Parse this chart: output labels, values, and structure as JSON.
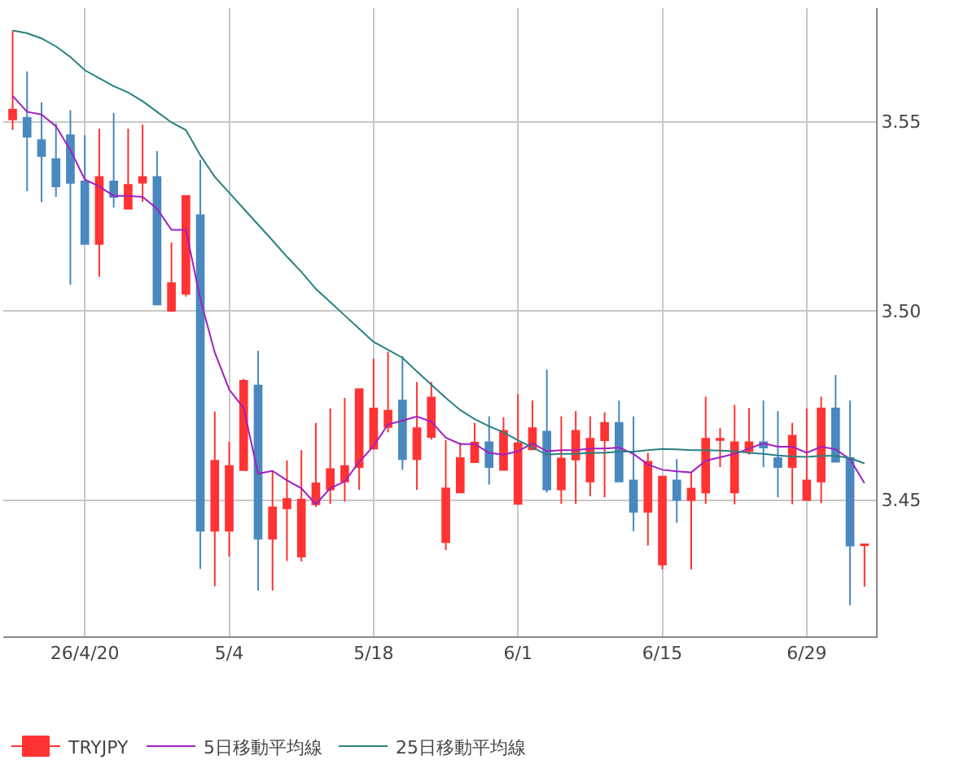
{
  "chart_data": {
    "type": "candlestick",
    "categories": [
      null,
      null,
      null,
      null,
      null,
      "26/4/20",
      null,
      null,
      null,
      null,
      null,
      null,
      null,
      null,
      null,
      "5/4",
      null,
      null,
      null,
      null,
      null,
      null,
      null,
      null,
      null,
      "5/18",
      null,
      null,
      null,
      null,
      null,
      null,
      null,
      null,
      null,
      "6/1",
      null,
      null,
      null,
      null,
      null,
      null,
      null,
      null,
      null,
      "6/15",
      null,
      null,
      null,
      null,
      null,
      null,
      null,
      null,
      null,
      "6/29",
      null,
      null,
      null,
      null
    ],
    "series": [
      {
        "name": "TRYJPY",
        "colors": [
          "#ff3333",
          "#4a88c0",
          "#4a88c0",
          "#4a88c0",
          "#4a88c0",
          "#4a88c0",
          "#ff3333",
          "#4a88c0",
          "#ff3333",
          "#ff3333",
          "#4a88c0",
          "#ff3333",
          "#ff3333",
          "#4a88c0",
          "#ff3333",
          "#ff3333",
          "#ff3333",
          "#4a88c0",
          "#ff3333",
          "#ff3333",
          "#ff3333",
          "#ff3333",
          "#ff3333",
          "#ff3333",
          "#ff3333",
          "#ff3333",
          "#ff3333",
          "#4a88c0",
          "#ff3333",
          "#ff3333",
          "#ff3333",
          "#ff3333",
          "#ff3333",
          "#4a88c0",
          "#ff3333",
          "#ff3333",
          "#ff3333",
          "#4a88c0",
          "#ff3333",
          "#ff3333",
          "#ff3333",
          "#ff3333",
          "#4a88c0",
          "#4a88c0",
          "#ff3333",
          "#ff3333",
          "#4a88c0",
          "#ff3333",
          "#ff3333",
          "#ff3333",
          "#ff3333",
          "#ff3333",
          "#4a88c0",
          "#4a88c0",
          "#ff3333",
          "#ff3333",
          "#ff3333",
          "#4a88c0",
          "#4a88c0",
          "#ff3333"
        ],
        "ohlc": [
          [
            3.5506,
            3.5741,
            3.5478,
            3.5532
          ],
          [
            3.551,
            3.5633,
            3.5316,
            3.546
          ],
          [
            3.5451,
            3.5551,
            3.5287,
            3.5409
          ],
          [
            3.5401,
            3.5495,
            3.5301,
            3.5329
          ],
          [
            3.5464,
            3.553,
            3.5069,
            3.5338
          ],
          [
            3.5342,
            3.5464,
            3.5177,
            3.5177
          ],
          [
            3.5177,
            3.5481,
            3.509,
            3.5354
          ],
          [
            3.5342,
            3.5523,
            3.5273,
            3.5301
          ],
          [
            3.527,
            3.5481,
            3.527,
            3.5333
          ],
          [
            3.5339,
            3.5492,
            3.5288,
            3.5354
          ],
          [
            3.5354,
            3.5422,
            3.5017,
            3.5017
          ],
          [
            3.5,
            3.5181,
            3.5,
            3.5073
          ],
          [
            3.5045,
            3.5304,
            3.5038,
            3.5304
          ],
          [
            3.5253,
            3.5399,
            3.4318,
            3.4419
          ],
          [
            3.4419,
            3.4734,
            3.4272,
            3.4604
          ],
          [
            3.4419,
            3.4654,
            3.4351,
            3.459
          ],
          [
            3.4579,
            3.482,
            3.4579,
            3.4815
          ],
          [
            3.4803,
            3.4894,
            3.4261,
            3.4398
          ],
          [
            3.4398,
            3.4577,
            3.4261,
            3.4481
          ],
          [
            3.4478,
            3.4605,
            3.4339,
            3.4503
          ],
          [
            3.4351,
            3.4632,
            3.4338,
            3.4501
          ],
          [
            3.4489,
            3.4704,
            3.4482,
            3.4544
          ],
          [
            3.4528,
            3.4742,
            3.449,
            3.4582
          ],
          [
            3.4549,
            3.477,
            3.4496,
            3.459
          ],
          [
            3.4587,
            3.4794,
            3.4527,
            3.4793
          ],
          [
            3.4636,
            3.4874,
            3.4636,
            3.4742
          ],
          [
            3.4693,
            3.4892,
            3.4679,
            3.4736
          ],
          [
            3.4763,
            3.4881,
            3.458,
            3.4608
          ],
          [
            3.4608,
            3.4812,
            3.4527,
            3.469
          ],
          [
            3.4667,
            3.4812,
            3.466,
            3.4771
          ],
          [
            3.4389,
            3.4658,
            3.4368,
            3.4531
          ],
          [
            3.452,
            3.4652,
            3.4518,
            3.4611
          ],
          [
            3.46,
            3.4704,
            3.46,
            3.4652
          ],
          [
            3.4653,
            3.4721,
            3.4541,
            3.4587
          ],
          [
            3.458,
            3.4719,
            3.458,
            3.4683
          ],
          [
            3.449,
            3.478,
            3.449,
            3.465
          ],
          [
            3.4634,
            3.4763,
            3.4634,
            3.469
          ],
          [
            3.4681,
            3.4845,
            3.452,
            3.4528
          ],
          [
            3.4528,
            3.4721,
            3.449,
            3.461
          ],
          [
            3.4607,
            3.4735,
            3.449,
            3.4683
          ],
          [
            3.4549,
            3.4721,
            3.451,
            3.4662
          ],
          [
            3.4658,
            3.4732,
            3.4507,
            3.4704
          ],
          [
            3.4704,
            3.4763,
            3.4549,
            3.4549
          ],
          [
            3.4552,
            3.4721,
            3.4418,
            3.4469
          ],
          [
            3.4469,
            3.4625,
            3.438,
            3.4601
          ],
          [
            3.433,
            3.4562,
            3.4317,
            3.4562
          ],
          [
            3.4552,
            3.4608,
            3.444,
            3.45
          ],
          [
            3.45,
            3.4573,
            3.4317,
            3.453
          ],
          [
            3.452,
            3.4773,
            3.449,
            3.4662
          ],
          [
            3.4659,
            3.469,
            3.4587,
            3.4662
          ],
          [
            3.452,
            3.4752,
            3.4489,
            3.4653
          ],
          [
            3.4629,
            3.4743,
            3.462,
            3.4653
          ],
          [
            3.4653,
            3.4763,
            3.4587,
            3.4639
          ],
          [
            3.4611,
            3.4735,
            3.4507,
            3.4587
          ],
          [
            3.4587,
            3.4704,
            3.4489,
            3.467
          ],
          [
            3.45,
            3.4742,
            3.45,
            3.4552
          ],
          [
            3.4549,
            3.4773,
            3.4492,
            3.4742
          ],
          [
            3.4742,
            3.483,
            3.4601,
            3.4601
          ],
          [
            3.4611,
            3.4763,
            3.4222,
            3.438
          ],
          [
            3.4381,
            3.4383,
            3.4271,
            3.4383
          ]
        ]
      },
      {
        "type": "line",
        "name": "5日移動平均線",
        "color": "#a020c0",
        "values": [
          3.5568,
          3.5526,
          3.5519,
          3.5488,
          3.5425,
          3.5347,
          3.5329,
          3.5304,
          3.5304,
          3.5301,
          3.527,
          3.5214,
          3.5214,
          3.5031,
          3.489,
          3.4792,
          3.4743,
          3.457,
          3.4577,
          3.4552,
          3.4531,
          3.4489,
          3.4531,
          3.4549,
          3.4601,
          3.4643,
          3.47,
          3.471,
          3.4721,
          3.4707,
          3.4665,
          3.4648,
          3.4648,
          3.4625,
          3.462,
          3.4629,
          3.465,
          3.4629,
          3.4632,
          3.4632,
          3.4636,
          3.4636,
          3.4639,
          3.4622,
          3.4594,
          3.458,
          3.4576,
          3.4573,
          3.4604,
          3.4613,
          3.4622,
          3.4636,
          3.465,
          3.4641,
          3.4641,
          3.4625,
          3.4641,
          3.4634,
          3.4608,
          3.4545
        ]
      },
      {
        "type": "line",
        "name": "25日移動平均線",
        "color": "#2a8080",
        "values": [
          3.5741,
          3.5734,
          3.572,
          3.5699,
          3.5671,
          3.5636,
          3.5615,
          3.5594,
          3.5577,
          3.5554,
          3.5526,
          3.5498,
          3.5478,
          3.5411,
          3.5354,
          3.5312,
          3.527,
          3.5228,
          3.5186,
          3.5143,
          3.5103,
          3.5058,
          3.5023,
          3.4988,
          3.4953,
          3.4918,
          3.4897,
          3.4876,
          3.484,
          3.4805,
          3.477,
          3.4738,
          3.4714,
          3.4695,
          3.4679,
          3.4658,
          3.4639,
          3.462,
          3.4622,
          3.4622,
          3.4625,
          3.4625,
          3.4628,
          3.4628,
          3.4632,
          3.4635,
          3.4634,
          3.4632,
          3.4632,
          3.4631,
          3.4629,
          3.4625,
          3.4622,
          3.4618,
          3.4615,
          3.4614,
          3.4617,
          3.4617,
          3.4611,
          3.4597
        ]
      }
    ],
    "ylim": [
      3.414,
      3.58
    ],
    "yticks": [
      3.45,
      {
        "value": 3.5,
        "label": "3.50"
      },
      3.55
    ],
    "grid": true,
    "legend": "bottom"
  }
}
